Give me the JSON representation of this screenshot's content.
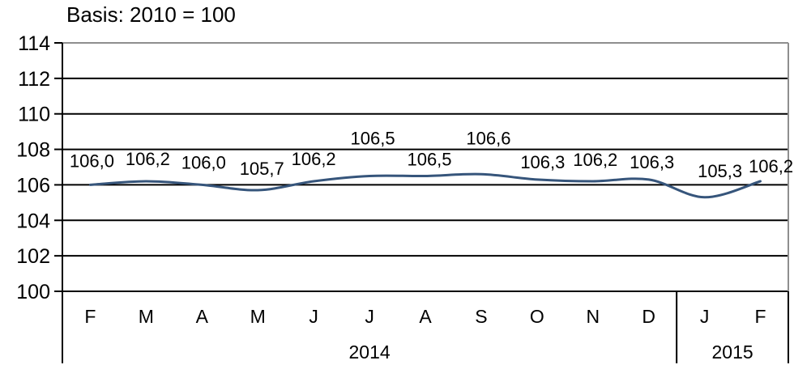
{
  "chart_data": {
    "type": "line",
    "smooth": true,
    "title": "Basis: 2010 = 100",
    "categories": [
      "F",
      "M",
      "A",
      "M",
      "J",
      "J",
      "A",
      "S",
      "O",
      "N",
      "D",
      "J",
      "F"
    ],
    "values": [
      106.0,
      106.2,
      106.0,
      105.7,
      106.2,
      106.5,
      106.5,
      106.6,
      106.3,
      106.2,
      106.3,
      105.3,
      106.2
    ],
    "point_labels": [
      "106,0",
      "106,2",
      "106,0",
      "105,7",
      "106,2",
      "106,5",
      "106,5",
      "106,6",
      "106,3",
      "106,2",
      "106,3",
      "105,3",
      "106,2"
    ],
    "year_groups": [
      {
        "label": "2014",
        "month_count": 11
      },
      {
        "label": "2015",
        "month_count": 2
      }
    ],
    "xlabel": "",
    "ylabel": "",
    "ylim": [
      100,
      114
    ],
    "yticks": [
      100,
      102,
      104,
      106,
      108,
      110,
      112,
      114
    ],
    "grid": true,
    "legend": "none",
    "colors": {
      "line": "#36557b",
      "grid": "#000000",
      "axis": "#000000",
      "border": "#8e8e8e",
      "text": "#000000"
    },
    "label_offsets": {
      "dx": [
        2,
        2,
        2,
        5,
        0,
        4,
        5,
        9,
        7,
        3,
        4,
        19,
        13
      ],
      "dy": [
        -30,
        -28,
        -28,
        -27,
        -28,
        -47,
        -21,
        -45,
        -22,
        -27,
        -22,
        -33,
        -19
      ]
    }
  }
}
